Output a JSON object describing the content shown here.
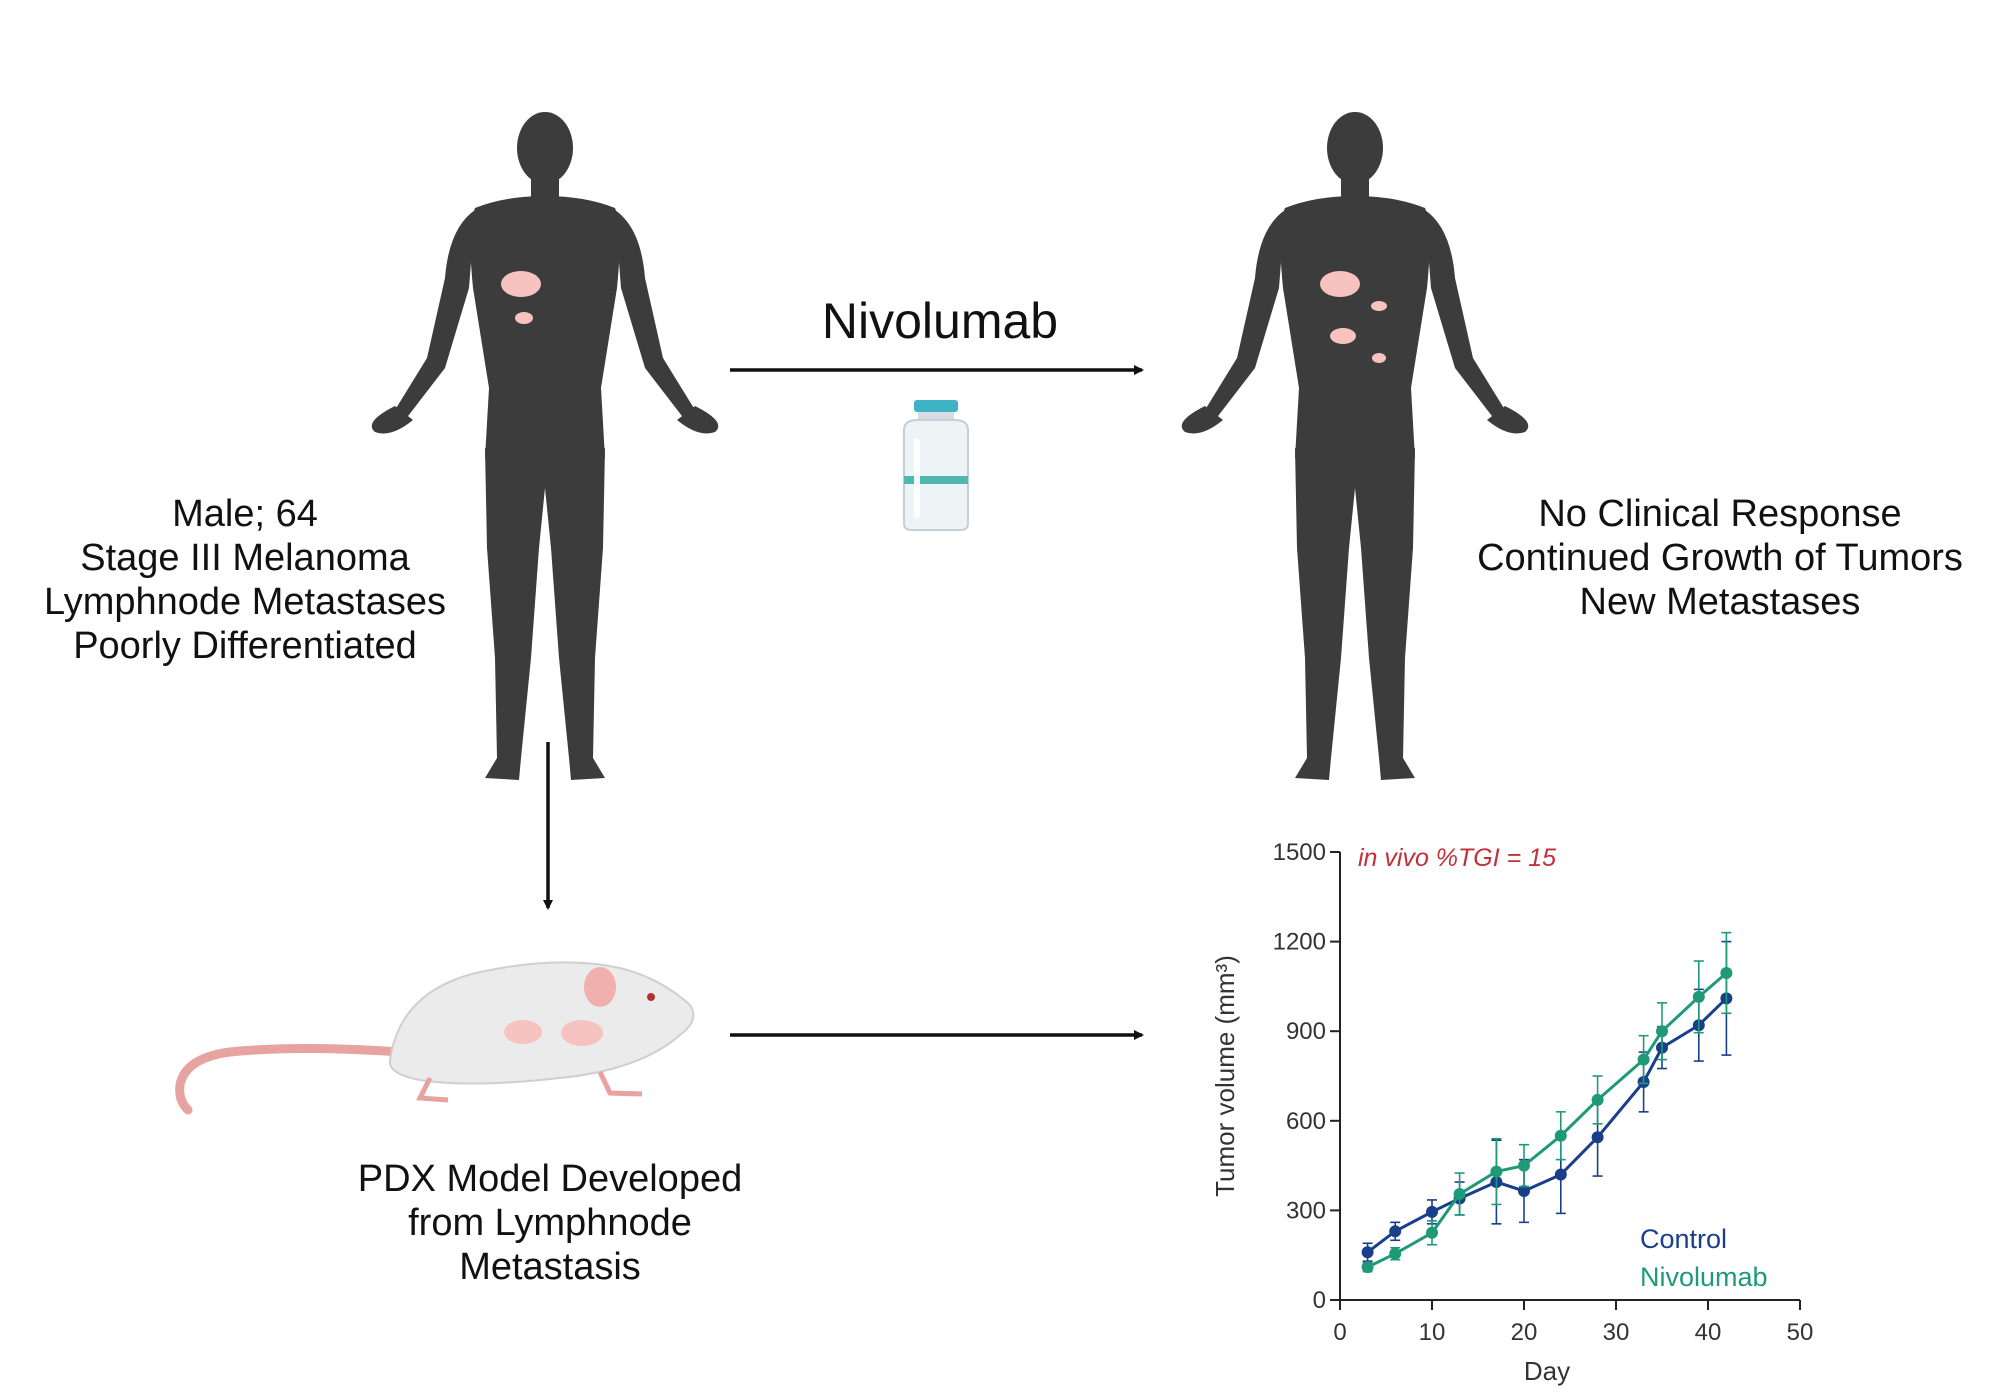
{
  "treatment": {
    "drug": "Nivolumab"
  },
  "patient": {
    "lines": [
      "Male; 64",
      "Stage III Melanoma",
      "Lymphnode Metastases",
      "Poorly Differentiated"
    ]
  },
  "outcome": {
    "lines": [
      "No Clinical Response",
      "Continued Growth of Tumors",
      "New Metastases"
    ]
  },
  "pdx": {
    "lines": [
      "PDX Model Developed",
      "from Lymphnode",
      "Metastasis"
    ]
  },
  "colors": {
    "body": "#3c3c3c",
    "tumor": "#f6c3c0",
    "control": "#1a3f8a",
    "nivolumab": "#1f9a78",
    "annotation": "#c0313a",
    "arrow": "#111111"
  },
  "icons": {
    "patient_before": "human-figure-icon",
    "patient_after": "human-figure-icon",
    "vial": "drug-vial-icon",
    "mouse": "mouse-icon"
  },
  "chart_data": {
    "type": "line",
    "annotation": "in vivo %TGI = 15",
    "xlabel": "Day",
    "ylabel": "Tumor volume (mm³)",
    "xlim": [
      0,
      50
    ],
    "ylim": [
      0,
      1500
    ],
    "xticks": [
      0,
      10,
      20,
      30,
      40,
      50
    ],
    "yticks": [
      0,
      300,
      600,
      900,
      1200,
      1500
    ],
    "legend": "bottom-right",
    "series": [
      {
        "name": "Control",
        "color": "#1a3f8a",
        "x": [
          3,
          6,
          10,
          13,
          17,
          20,
          24,
          28,
          33,
          35,
          39,
          42
        ],
        "y": [
          160,
          230,
          295,
          340,
          395,
          365,
          420,
          545,
          730,
          845,
          920,
          1010
        ],
        "err": [
          30,
          30,
          40,
          55,
          140,
          105,
          130,
          130,
          100,
          70,
          120,
          190
        ]
      },
      {
        "name": "Nivolumab",
        "color": "#1f9a78",
        "x": [
          3,
          6,
          10,
          13,
          17,
          20,
          24,
          28,
          33,
          35,
          39,
          42
        ],
        "y": [
          110,
          155,
          225,
          355,
          430,
          450,
          550,
          670,
          805,
          900,
          1015,
          1095
        ],
        "err": [
          15,
          20,
          40,
          70,
          110,
          70,
          80,
          80,
          80,
          95,
          120,
          135
        ]
      }
    ]
  }
}
